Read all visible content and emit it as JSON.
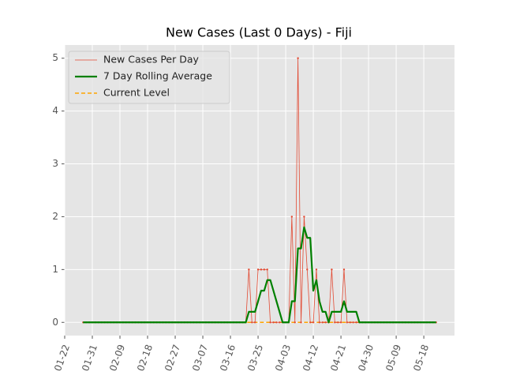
{
  "chart_data": {
    "type": "line",
    "title": "New Cases (Last 0 Days) - Fiji",
    "x": [
      "01-28",
      "01-29",
      "01-30",
      "01-31",
      "02-01",
      "02-02",
      "02-03",
      "02-04",
      "02-05",
      "02-06",
      "02-07",
      "02-08",
      "02-09",
      "02-10",
      "02-11",
      "02-12",
      "02-13",
      "02-14",
      "02-15",
      "02-16",
      "02-17",
      "02-18",
      "02-19",
      "02-20",
      "02-21",
      "02-22",
      "02-23",
      "02-24",
      "02-25",
      "02-26",
      "02-27",
      "02-28",
      "02-29",
      "03-01",
      "03-02",
      "03-03",
      "03-04",
      "03-05",
      "03-06",
      "03-07",
      "03-08",
      "03-09",
      "03-10",
      "03-11",
      "03-12",
      "03-13",
      "03-14",
      "03-15",
      "03-16",
      "03-17",
      "03-18",
      "03-19",
      "03-20",
      "03-21",
      "03-22",
      "03-23",
      "03-24",
      "03-25",
      "03-26",
      "03-27",
      "03-28",
      "03-29",
      "03-30",
      "03-31",
      "04-01",
      "04-02",
      "04-03",
      "04-04",
      "04-05",
      "04-06",
      "04-07",
      "04-08",
      "04-09",
      "04-10",
      "04-11",
      "04-12",
      "04-13",
      "04-14",
      "04-15",
      "04-16",
      "04-17",
      "04-18",
      "04-19",
      "04-20",
      "04-21",
      "04-22",
      "04-23",
      "04-24",
      "04-25",
      "04-26",
      "04-27",
      "04-28",
      "04-29",
      "04-30",
      "05-01",
      "05-02",
      "05-03",
      "05-04",
      "05-05",
      "05-06",
      "05-07",
      "05-08",
      "05-09",
      "05-10",
      "05-11",
      "05-12",
      "05-13",
      "05-14",
      "05-15",
      "05-16",
      "05-17",
      "05-18",
      "05-19",
      "05-20",
      "05-21",
      "05-22"
    ],
    "series": [
      {
        "name": "New Cases Per Day",
        "color": "#e24a33",
        "style": "thin-marker",
        "values": [
          0,
          0,
          0,
          0,
          0,
          0,
          0,
          0,
          0,
          0,
          0,
          0,
          0,
          0,
          0,
          0,
          0,
          0,
          0,
          0,
          0,
          0,
          0,
          0,
          0,
          0,
          0,
          0,
          0,
          0,
          0,
          0,
          0,
          0,
          0,
          0,
          0,
          0,
          0,
          0,
          0,
          0,
          0,
          0,
          0,
          0,
          0,
          0,
          0,
          0,
          0,
          0,
          0,
          0,
          1,
          0,
          0,
          1,
          1,
          1,
          1,
          0,
          0,
          0,
          0,
          0,
          0,
          0,
          2,
          0,
          5,
          0,
          2,
          1,
          0,
          0,
          1,
          0,
          0,
          0,
          0,
          1,
          0,
          0,
          0,
          1,
          0,
          0,
          0,
          0,
          0,
          0,
          0,
          0,
          0,
          0,
          0,
          0,
          0,
          0,
          0,
          0,
          0,
          0,
          0,
          0,
          0,
          0,
          0,
          0,
          0,
          0,
          0,
          0,
          0,
          0
        ]
      },
      {
        "name": "7 Day Rolling Average",
        "color": "#008000",
        "style": "thick",
        "values": [
          0,
          0,
          0,
          0,
          0,
          0,
          0,
          0,
          0,
          0,
          0,
          0,
          0,
          0,
          0,
          0,
          0,
          0,
          0,
          0,
          0,
          0,
          0,
          0,
          0,
          0,
          0,
          0,
          0,
          0,
          0,
          0,
          0,
          0,
          0,
          0,
          0,
          0,
          0,
          0,
          0,
          0,
          0,
          0,
          0,
          0,
          0,
          0,
          0,
          0,
          0,
          0,
          0,
          0,
          0.2,
          0.2,
          0.2,
          0.4,
          0.6,
          0.6,
          0.8,
          0.8,
          0.6,
          0.4,
          0.2,
          0,
          0,
          0,
          0.4,
          0.4,
          1.4,
          1.4,
          1.8,
          1.6,
          1.6,
          0.6,
          0.8,
          0.4,
          0.2,
          0.2,
          0,
          0.2,
          0.2,
          0.2,
          0.2,
          0.4,
          0.2,
          0.2,
          0.2,
          0.2,
          0,
          0,
          0,
          0,
          0,
          0,
          0,
          0,
          0,
          0,
          0,
          0,
          0,
          0,
          0,
          0,
          0,
          0,
          0,
          0,
          0,
          0,
          0,
          0,
          0,
          0
        ]
      },
      {
        "name": "Current Level",
        "color": "#ffa500",
        "style": "dashed",
        "values": [
          0,
          0,
          0,
          0,
          0,
          0,
          0,
          0,
          0,
          0,
          0,
          0,
          0,
          0,
          0,
          0,
          0,
          0,
          0,
          0,
          0,
          0,
          0,
          0,
          0,
          0,
          0,
          0,
          0,
          0,
          0,
          0,
          0,
          0,
          0,
          0,
          0,
          0,
          0,
          0,
          0,
          0,
          0,
          0,
          0,
          0,
          0,
          0,
          0,
          0,
          0,
          0,
          0,
          0,
          0,
          0,
          0,
          0,
          0,
          0,
          0,
          0,
          0,
          0,
          0,
          0,
          0,
          0,
          0,
          0,
          0,
          0,
          0,
          0,
          0,
          0,
          0,
          0,
          0,
          0,
          0,
          0,
          0,
          0,
          0,
          0,
          0,
          0,
          0,
          0,
          0,
          0,
          0,
          0,
          0,
          0,
          0,
          0,
          0,
          0,
          0,
          0,
          0,
          0,
          0,
          0,
          0,
          0,
          0,
          0,
          0,
          0,
          0,
          0,
          0,
          0
        ]
      }
    ],
    "xlim": [
      "01-22",
      "05-28"
    ],
    "xticks": [
      "01-22",
      "01-31",
      "02-09",
      "02-18",
      "02-27",
      "03-07",
      "03-16",
      "03-25",
      "04-03",
      "04-12",
      "04-21",
      "04-30",
      "05-09",
      "05-18"
    ],
    "ylim": [
      -0.25,
      5.25
    ],
    "yticks": [
      0,
      1,
      2,
      3,
      4,
      5
    ],
    "grid": true,
    "legend": "upper left"
  }
}
